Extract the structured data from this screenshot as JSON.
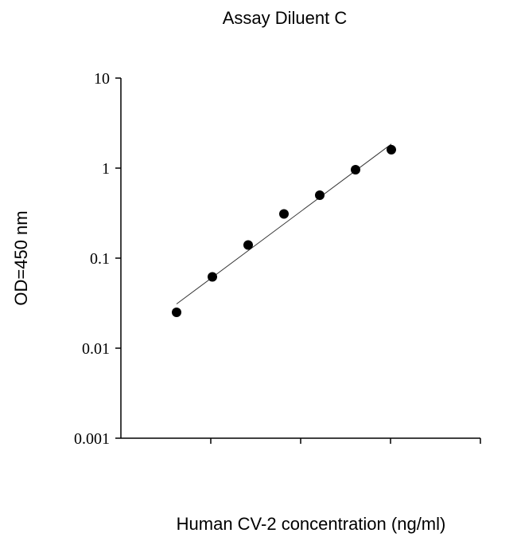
{
  "chart_data": {
    "type": "scatter",
    "title": "Assay Diluent C",
    "xlabel": "Human CV-2 concentration (ng/ml)",
    "ylabel": "OD=450 nm",
    "y_scale": "log",
    "ylim": [
      0.001,
      10
    ],
    "y_ticks": [
      "10",
      "1",
      "0.1",
      "0.01",
      "0.001"
    ],
    "y_tick_values": [
      10,
      1,
      0.1,
      0.01,
      0.001
    ],
    "x_scale": "log",
    "x_tick_labels_shown": false,
    "points": [
      {
        "x": 0.3,
        "y": 0.025
      },
      {
        "x": 0.6,
        "y": 0.062
      },
      {
        "x": 1.2,
        "y": 0.14
      },
      {
        "x": 2.4,
        "y": 0.31
      },
      {
        "x": 4.8,
        "y": 0.5
      },
      {
        "x": 9.6,
        "y": 0.96
      },
      {
        "x": 19.2,
        "y": 1.6
      }
    ],
    "fit_line": {
      "x": [
        0.3,
        19.2
      ],
      "y": [
        0.031,
        1.85
      ]
    },
    "grid": false,
    "legend": "none"
  }
}
